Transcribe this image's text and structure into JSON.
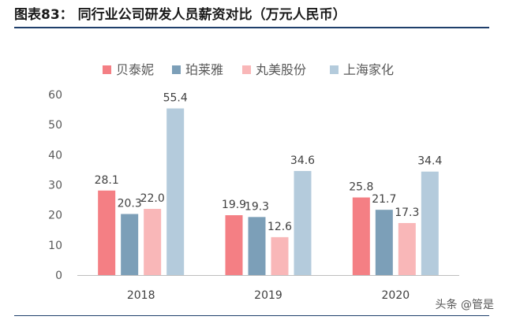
{
  "header": {
    "title": "图表83：  同行业公司研发人员薪资对比（万元人民币）"
  },
  "watermark": "头条 @管是",
  "chart_data": {
    "type": "bar",
    "categories": [
      "2018",
      "2019",
      "2020"
    ],
    "series": [
      {
        "name": "贝泰妮",
        "values": [
          28.1,
          19.9,
          25.8
        ],
        "color": "#f47f84"
      },
      {
        "name": "珀莱雅",
        "values": [
          20.3,
          19.3,
          21.7
        ],
        "color": "#7c9fb8"
      },
      {
        "name": "丸美股份",
        "values": [
          22.0,
          12.6,
          17.3
        ],
        "color": "#f9b7b8"
      },
      {
        "name": "上海家化",
        "values": [
          55.4,
          34.6,
          34.4
        ],
        "color": "#b4cbdc"
      }
    ],
    "value_labels": [
      [
        "28.1",
        "19.9",
        "25.8"
      ],
      [
        "20.3",
        "19.3",
        "21.7"
      ],
      [
        "22.0",
        "12.6",
        "17.3"
      ],
      [
        "55.4",
        "34.6",
        "34.4"
      ]
    ],
    "yticks": [
      "0",
      "10",
      "20",
      "30",
      "40",
      "50",
      "60"
    ],
    "ylim": [
      0,
      60
    ],
    "legend_position": "top",
    "grid": false
  }
}
